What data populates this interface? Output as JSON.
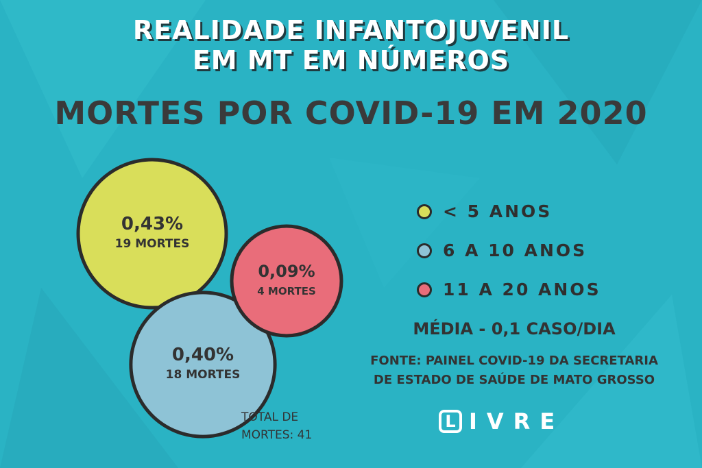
{
  "header": {
    "title_line1": "REALIDADE INFANTOJUVENIL",
    "title_line2": "EM MT EM NÚMEROS",
    "subtitle": "MORTES POR COVID-19 EM 2020"
  },
  "chart_data": {
    "type": "bubble",
    "categories": [
      "< 5 ANOS",
      "6 A 10 ANOS",
      "11 A 20 ANOS"
    ],
    "series": [
      {
        "category": "< 5 ANOS",
        "percent": 0.43,
        "deaths": 19,
        "percent_label": "0,43%",
        "deaths_label": "19 MORTES",
        "color": "#d9de5a"
      },
      {
        "category": "6 A 10 ANOS",
        "percent": 0.4,
        "deaths": 18,
        "percent_label": "0,40%",
        "deaths_label": "18 MORTES",
        "color": "#8ec3d6"
      },
      {
        "category": "11 A 20 ANOS",
        "percent": 0.09,
        "deaths": 4,
        "percent_label": "0,09%",
        "deaths_label": "4 MORTES",
        "color": "#e96d7a"
      }
    ],
    "legend_position": "right"
  },
  "legend": [
    {
      "label": "< 5 ANOS",
      "color": "#d9de5a"
    },
    {
      "label": "6 A 10 ANOS",
      "color": "#8ec3d6"
    },
    {
      "label": "11 A 20 ANOS",
      "color": "#e96d7a"
    }
  ],
  "stats": {
    "media": "MÉDIA - 0,1 CASO/DIA",
    "fonte_line1": "FONTE: PAINEL COVID-19 DA SECRETARIA",
    "fonte_line2": "DE ESTADO DE SAÚDE DE MATO GROSSO",
    "total_line1": "TOTAL DE",
    "total_line2": "MORTES: 41"
  },
  "logo": {
    "mark": "L",
    "text": "IVRE"
  },
  "colors": {
    "background": "#2ab3c4",
    "text_dark": "#333333",
    "outline": "#2b2b2b"
  }
}
